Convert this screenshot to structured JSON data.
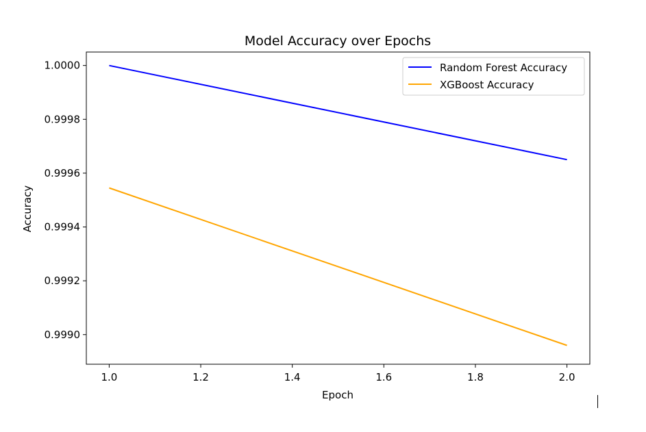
{
  "chart_data": {
    "type": "line",
    "title": "Model Accuracy over Epochs",
    "xlabel": "Epoch",
    "ylabel": "Accuracy",
    "xlim": [
      0.95,
      2.05
    ],
    "ylim": [
      0.99889,
      1.00005
    ],
    "x_ticks": [
      1.0,
      1.2,
      1.4,
      1.6,
      1.8,
      2.0
    ],
    "x_tick_labels": [
      "1.0",
      "1.2",
      "1.4",
      "1.6",
      "1.8",
      "2.0"
    ],
    "y_ticks": [
      0.999,
      0.9992,
      0.9994,
      0.9996,
      0.9998,
      1.0
    ],
    "y_tick_labels": [
      "0.9990",
      "0.9992",
      "0.9994",
      "0.9996",
      "0.9998",
      "1.0000"
    ],
    "grid": false,
    "legend_position": "top-right",
    "series": [
      {
        "name": "Random Forest Accuracy",
        "color": "#0000ff",
        "x": [
          1.0,
          2.0
        ],
        "values": [
          1.0,
          0.99965
        ]
      },
      {
        "name": "XGBoost Accuracy",
        "color": "#ffa500",
        "x": [
          1.0,
          2.0
        ],
        "values": [
          0.999545,
          0.99896
        ]
      }
    ]
  }
}
